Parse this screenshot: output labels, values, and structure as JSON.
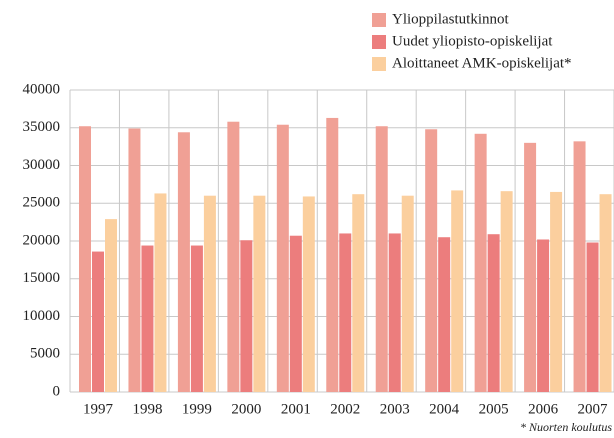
{
  "chart_data": {
    "type": "bar",
    "categories": [
      "1997",
      "1998",
      "1999",
      "2000",
      "2001",
      "2002",
      "2003",
      "2004",
      "2005",
      "2006",
      "2007"
    ],
    "series": [
      {
        "name": "Ylioppilastutkinnot",
        "color": "#f0a095",
        "values": [
          35200,
          34900,
          34400,
          35800,
          35400,
          36300,
          35200,
          34800,
          34200,
          33000,
          33200
        ]
      },
      {
        "name": "Uudet yliopisto-opiskelijat",
        "color": "#ec7d7d",
        "values": [
          18600,
          19400,
          19400,
          20100,
          20700,
          21000,
          21000,
          20500,
          20900,
          20200,
          19800
        ]
      },
      {
        "name": "Aloittaneet AMK-opiskelijat*",
        "color": "#fbcf9e",
        "values": [
          22900,
          26300,
          26000,
          26000,
          25900,
          26200,
          26000,
          26700,
          26600,
          26500,
          26200
        ]
      }
    ],
    "ylim": [
      0,
      40000
    ],
    "yticks": [
      0,
      5000,
      10000,
      15000,
      20000,
      25000,
      30000,
      35000,
      40000
    ],
    "grid": true,
    "legend": "top-right",
    "footnote": "* Nuorten koulutus"
  }
}
